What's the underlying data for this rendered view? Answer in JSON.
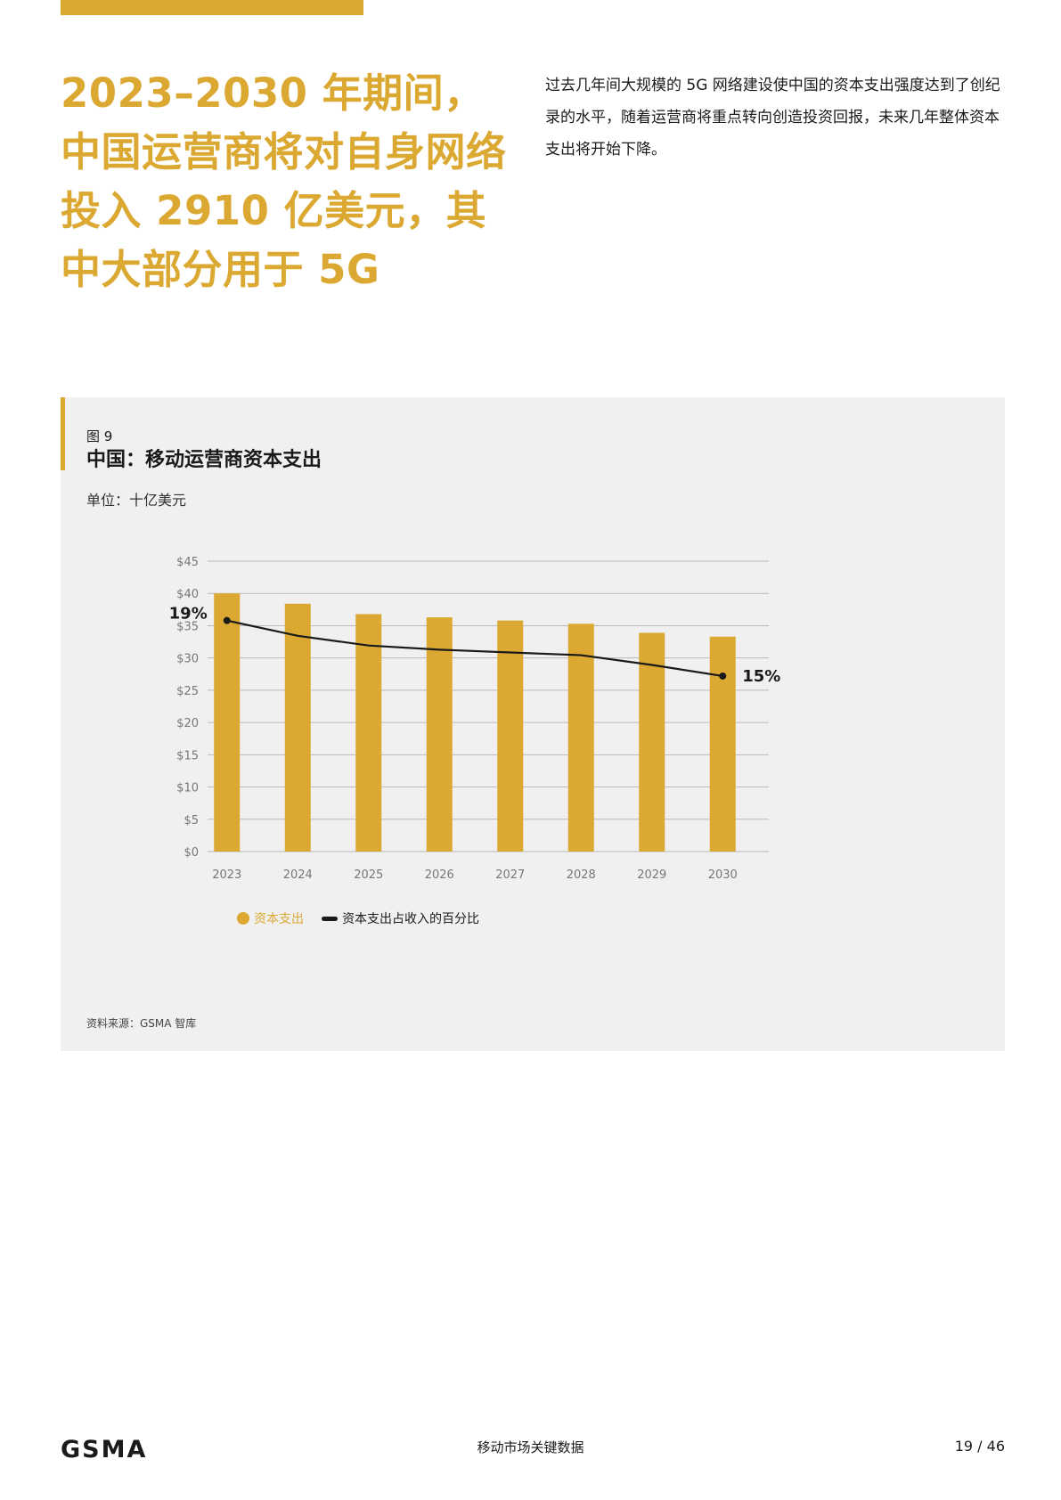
{
  "headline": "2023–2030 年期间，中国运营商将对自身网络投入 2910 亿美元，其中大部分用于 5G",
  "intro": "过去几年间大规模的 5G 网络建设使中国的资本支出强度达到了创纪录的水平，随着运营商将重点转向创造投资回报，未来几年整体资本支出将开始下降。",
  "figure": {
    "number": "图 9",
    "title": "中国：移动运营商资本支出",
    "unit": "单位：十亿美元",
    "source": "资料来源：GSMA 智库"
  },
  "chart_data": {
    "type": "bar",
    "categories": [
      "2023",
      "2024",
      "2025",
      "2026",
      "2027",
      "2028",
      "2029",
      "2030"
    ],
    "series": [
      {
        "name": "资本支出",
        "type": "bar",
        "color": "#dba832",
        "values": [
          40.0,
          38.4,
          36.8,
          36.3,
          35.8,
          35.3,
          33.9,
          33.3
        ]
      },
      {
        "name": "资本支出占收入的百分比",
        "type": "line",
        "color": "#1a1a1a",
        "values": [
          19.0,
          17.9,
          17.2,
          16.9,
          16.7,
          16.5,
          15.8,
          15.0
        ],
        "unit": "%"
      }
    ],
    "ylim": [
      0,
      45
    ],
    "yticks": [
      "$0",
      "$5",
      "$10",
      "$15",
      "$20",
      "$25",
      "$30",
      "$35",
      "$40",
      "$45"
    ],
    "line_labels": {
      "first": "19%",
      "last": "15%"
    },
    "grid": true,
    "legend": "bottom-left"
  },
  "footer": {
    "logo": "GSMA",
    "center": "移动市场关键数据",
    "page": "19 / 46"
  },
  "colors": {
    "accent": "#dba832",
    "panel": "#f0f0f0",
    "text": "#1a1a1a"
  }
}
